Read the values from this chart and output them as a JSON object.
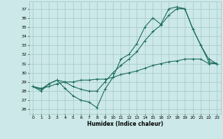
{
  "title": "",
  "xlabel": "Humidex (Indice chaleur)",
  "background_color": "#cce8e8",
  "grid_color": "#aacccc",
  "line_color": "#1a6b5a",
  "xlim": [
    -0.5,
    23.5
  ],
  "ylim": [
    25.5,
    37.8
  ],
  "yticks": [
    26,
    27,
    28,
    29,
    30,
    31,
    32,
    33,
    34,
    35,
    36,
    37
  ],
  "xticks": [
    0,
    1,
    2,
    3,
    4,
    5,
    6,
    7,
    8,
    9,
    10,
    11,
    12,
    13,
    14,
    15,
    16,
    17,
    18,
    19,
    20,
    21,
    22,
    23
  ],
  "series": [
    {
      "x": [
        0,
        1,
        2,
        3,
        4,
        5,
        6,
        7,
        8,
        9,
        10,
        11,
        12,
        13,
        14,
        15,
        16,
        17,
        18,
        19,
        20,
        21,
        22,
        23
      ],
      "y": [
        28.5,
        28.0,
        28.8,
        29.2,
        28.3,
        27.5,
        27.0,
        26.8,
        26.2,
        28.2,
        29.5,
        31.5,
        32.0,
        33.2,
        35.0,
        36.0,
        35.3,
        37.0,
        37.2,
        37.0,
        34.8,
        33.0,
        31.2,
        31.0
      ]
    },
    {
      "x": [
        0,
        1,
        2,
        3,
        4,
        5,
        6,
        7,
        8,
        9,
        10,
        11,
        12,
        13,
        14,
        15,
        16,
        17,
        18,
        19,
        20,
        21,
        22,
        23
      ],
      "y": [
        28.5,
        28.2,
        28.8,
        29.2,
        29.0,
        28.5,
        28.2,
        28.0,
        28.0,
        29.0,
        30.0,
        30.8,
        31.5,
        32.3,
        33.5,
        34.5,
        35.2,
        36.3,
        37.0,
        37.0,
        34.8,
        33.0,
        31.5,
        31.0
      ]
    },
    {
      "x": [
        0,
        1,
        2,
        3,
        4,
        5,
        6,
        7,
        8,
        9,
        10,
        11,
        12,
        13,
        14,
        15,
        16,
        17,
        18,
        19,
        20,
        21,
        22,
        23
      ],
      "y": [
        28.5,
        28.3,
        28.5,
        28.8,
        29.0,
        29.0,
        29.2,
        29.2,
        29.3,
        29.3,
        29.5,
        29.8,
        30.0,
        30.2,
        30.5,
        30.8,
        31.0,
        31.2,
        31.3,
        31.5,
        31.5,
        31.5,
        31.0,
        31.0
      ]
    }
  ]
}
